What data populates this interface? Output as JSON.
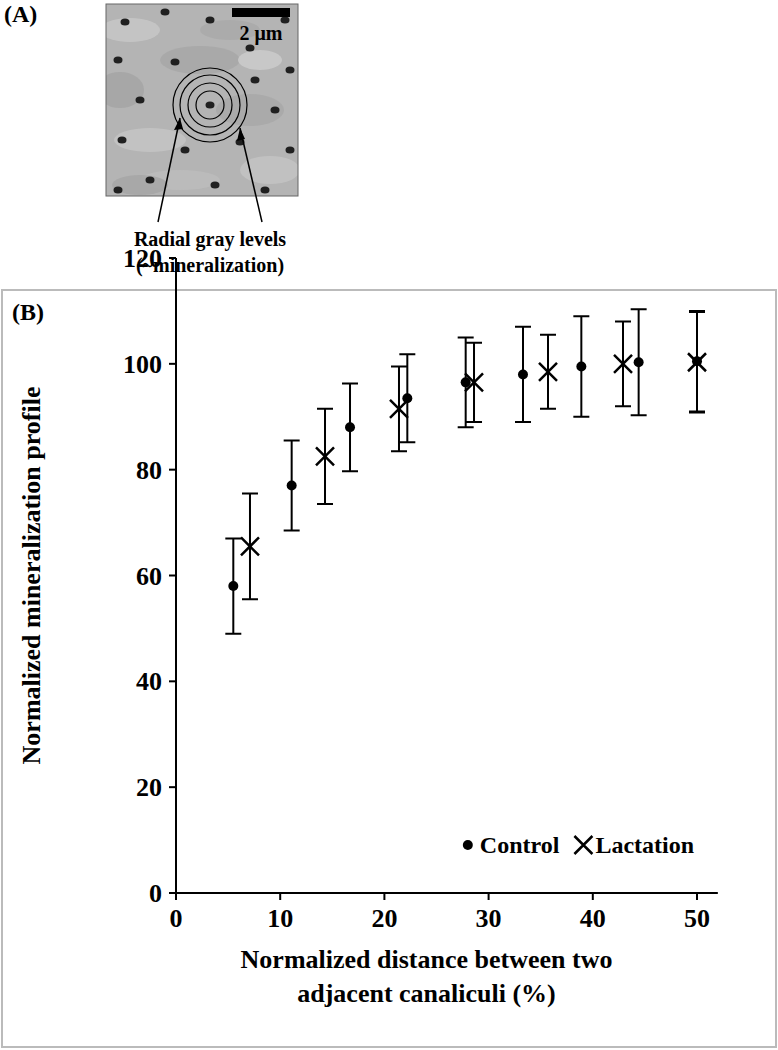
{
  "panel_a": {
    "label": "(A)",
    "scale_bar": "2 μm",
    "annotation_lines": [
      "Radial gray levels",
      "(~mineralization)"
    ]
  },
  "chart_data": {
    "type": "scatter",
    "title": "(B)",
    "x_label": [
      "Normalized distance between two",
      "adjacent canaliculi (%)"
    ],
    "y_label": "Normalized mineralization profile",
    "xlim": [
      0,
      52
    ],
    "xticks": [
      0,
      10,
      20,
      30,
      40,
      50
    ],
    "ylim": [
      0,
      120
    ],
    "yticks": [
      0,
      20,
      40,
      60,
      80,
      100,
      120
    ],
    "grid": false,
    "legend": "lower right",
    "series": [
      {
        "name": "Control",
        "color": "#000000",
        "marker": "circle",
        "x": [
          5.5,
          11.1,
          16.7,
          22.2,
          27.8,
          33.3,
          38.9,
          44.4,
          50
        ],
        "values": [
          58,
          77,
          88,
          93.5,
          96.5,
          98,
          99.5,
          100.3,
          100.5
        ],
        "errors": [
          9,
          8.5,
          8.3,
          8.3,
          8.5,
          9,
          9.5,
          10,
          9.5
        ]
      },
      {
        "name": "Lactation",
        "color": "#000000",
        "marker": "x",
        "x": [
          7.1,
          14.3,
          21.4,
          28.6,
          35.7,
          42.9,
          50
        ],
        "values": [
          65.5,
          82.5,
          91.5,
          96.5,
          98.5,
          100,
          100.3
        ],
        "errors": [
          10,
          9,
          8,
          7.5,
          7,
          8,
          9.5
        ]
      }
    ]
  }
}
